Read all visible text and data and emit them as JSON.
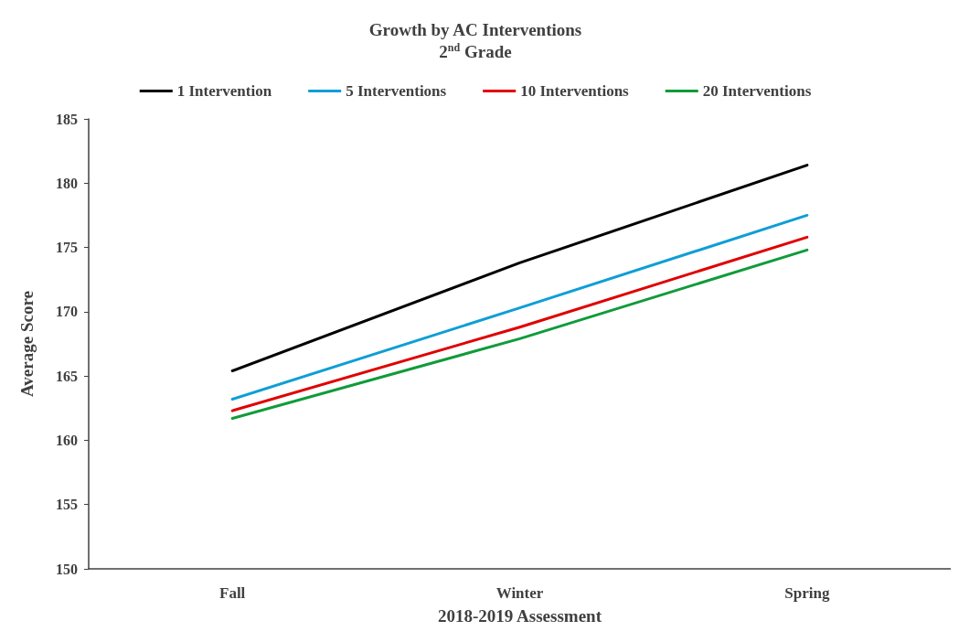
{
  "chart_data": {
    "type": "line",
    "title": "Growth by AC Interventions",
    "subtitle": "2$^{nd}$ Grade",
    "xlabel": "2018-2019 Assessment",
    "ylabel": "Average Score",
    "categories": [
      "Fall",
      "Winter",
      "Spring"
    ],
    "series": [
      {
        "name": "1 Intervention",
        "color": "#000000",
        "values": [
          165.4,
          173.8,
          181.4
        ]
      },
      {
        "name": "5 Interventions",
        "color": "#0f9ed5",
        "values": [
          163.2,
          170.3,
          177.5
        ]
      },
      {
        "name": "10 Interventions",
        "color": "#e00000",
        "values": [
          162.3,
          168.8,
          175.8
        ]
      },
      {
        "name": "20 Interventions",
        "color": "#109b3a",
        "values": [
          161.7,
          167.9,
          174.8
        ]
      }
    ],
    "ylim": [
      150,
      185
    ],
    "yticks": [
      150,
      155,
      160,
      165,
      170,
      175,
      180,
      185
    ],
    "grid": false,
    "legend": "top",
    "marker": "none",
    "line_style": "solid"
  }
}
